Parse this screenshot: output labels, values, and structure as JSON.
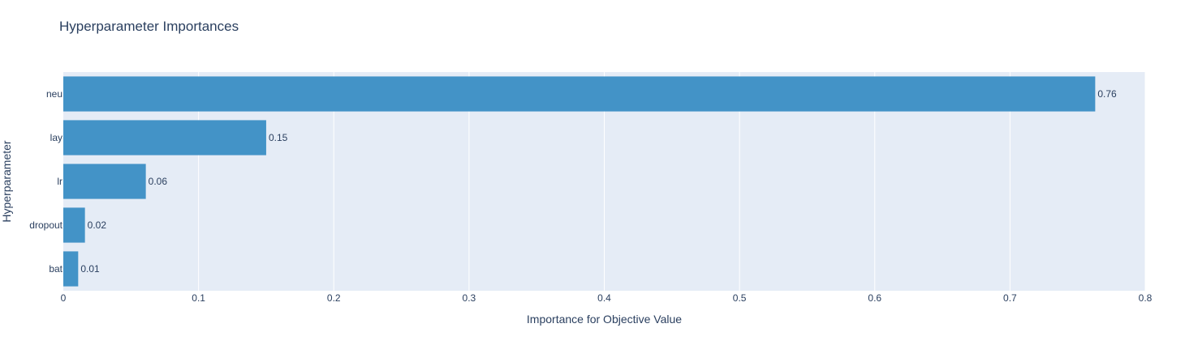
{
  "chart_data": {
    "type": "bar",
    "orientation": "horizontal",
    "title": "Hyperparameter Importances",
    "xlabel": "Importance for Objective Value",
    "ylabel": "Hyperparameter",
    "xlim": [
      0,
      0.8
    ],
    "x_ticks": [
      "0",
      "0.1",
      "0.2",
      "0.3",
      "0.4",
      "0.5",
      "0.6",
      "0.7",
      "0.8"
    ],
    "categories": [
      "neu",
      "lay",
      "lr",
      "dropout",
      "bat"
    ],
    "values": [
      0.763,
      0.15,
      0.061,
      0.016,
      0.011
    ],
    "value_labels": [
      "0.76",
      "0.15",
      "0.06",
      "0.02",
      "0.01"
    ],
    "grid": true,
    "bar_color": "#4393c7",
    "plot_background": "#e5ecf6",
    "grid_color": "#ffffff",
    "text_color": "#2a3f5f"
  }
}
